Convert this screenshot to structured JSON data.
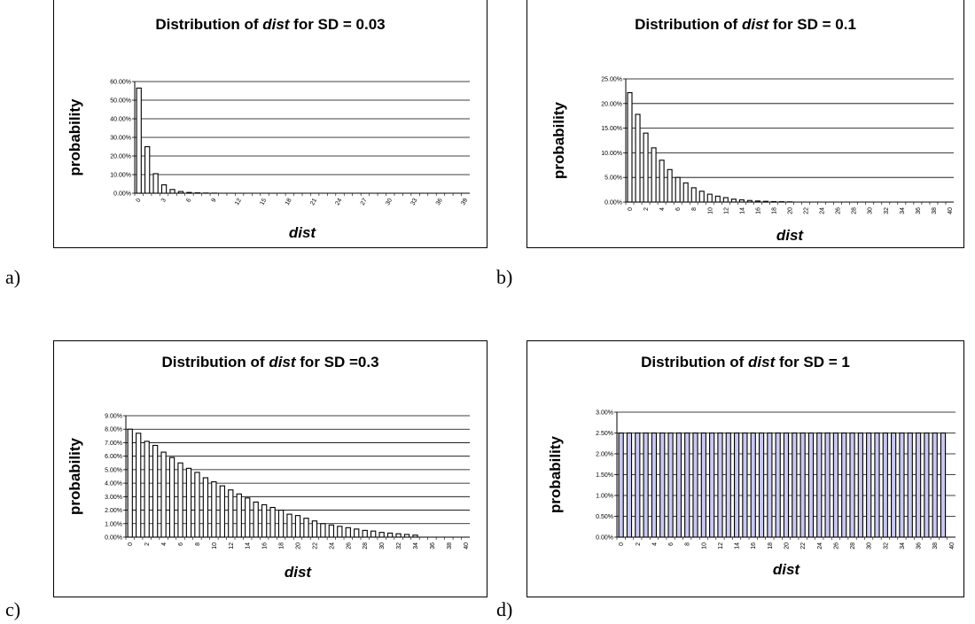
{
  "chart_data": [
    {
      "panel_label": "a)",
      "type": "bar",
      "title_prefix": "Distribution of ",
      "title_italic": "dist",
      "title_suffix": " for SD = 0.03",
      "xlabel": "dist",
      "ylabel": "probability",
      "ylim": [
        0,
        0.6
      ],
      "yticks": [
        "0.00%",
        "10.00%",
        "20.00%",
        "30.00%",
        "40.00%",
        "50.00%",
        "60.00%"
      ],
      "categories": [
        0,
        1,
        2,
        3,
        4,
        5,
        6,
        7,
        8,
        9,
        10,
        11,
        12,
        13,
        14,
        15,
        16,
        17,
        18,
        19,
        20,
        21,
        22,
        23,
        24,
        25,
        26,
        27,
        28,
        29,
        30,
        31,
        32,
        33,
        34,
        35,
        36,
        37,
        38,
        39
      ],
      "x_tick_labels": [
        "0",
        "3",
        "6",
        "9",
        "12",
        "15",
        "18",
        "21",
        "24",
        "27",
        "30",
        "33",
        "36",
        "39"
      ],
      "x_tick_step": 3,
      "bar_color": "#ffffff",
      "values": [
        0.565,
        0.25,
        0.105,
        0.045,
        0.02,
        0.009,
        0.004,
        0.002,
        0.001,
        0.0005,
        0,
        0,
        0,
        0,
        0,
        0,
        0,
        0,
        0,
        0,
        0,
        0,
        0,
        0,
        0,
        0,
        0,
        0,
        0,
        0,
        0,
        0,
        0,
        0,
        0,
        0,
        0,
        0,
        0,
        0
      ]
    },
    {
      "panel_label": "b)",
      "type": "bar",
      "title_prefix": "Distribution of ",
      "title_italic": "dist",
      "title_suffix": " for SD = 0.1",
      "xlabel": "dist",
      "ylabel": "probability",
      "ylim": [
        0,
        0.25
      ],
      "yticks": [
        "0.00%",
        "5.00%",
        "10.00%",
        "15.00%",
        "20.00%",
        "25.00%"
      ],
      "categories": [
        0,
        1,
        2,
        3,
        4,
        5,
        6,
        7,
        8,
        9,
        10,
        11,
        12,
        13,
        14,
        15,
        16,
        17,
        18,
        19,
        20,
        21,
        22,
        23,
        24,
        25,
        26,
        27,
        28,
        29,
        30,
        31,
        32,
        33,
        34,
        35,
        36,
        37,
        38,
        39,
        40
      ],
      "x_tick_labels": [
        "0",
        "2",
        "4",
        "6",
        "8",
        "10",
        "12",
        "14",
        "16",
        "18",
        "20",
        "22",
        "24",
        "26",
        "28",
        "30",
        "32",
        "34",
        "36",
        "38",
        "40"
      ],
      "x_tick_step": 2,
      "bar_color": "#ffffff",
      "values": [
        0.222,
        0.178,
        0.14,
        0.11,
        0.085,
        0.066,
        0.05,
        0.039,
        0.029,
        0.022,
        0.016,
        0.012,
        0.009,
        0.006,
        0.0045,
        0.0032,
        0.0022,
        0.0015,
        0.001,
        0.0007,
        0.0004,
        0,
        0,
        0,
        0,
        0,
        0,
        0,
        0,
        0,
        0,
        0,
        0,
        0,
        0,
        0,
        0,
        0,
        0,
        0,
        0
      ]
    },
    {
      "panel_label": "c)",
      "type": "bar",
      "title_prefix": "Distribution of ",
      "title_italic": "dist",
      "title_suffix": " for SD =0.3",
      "xlabel": "dist",
      "ylabel": "probability",
      "ylim": [
        0,
        0.09
      ],
      "yticks": [
        "0.00%",
        "1.00%",
        "2.00%",
        "3.00%",
        "4.00%",
        "5.00%",
        "6.00%",
        "7.00%",
        "8.00%",
        "9.00%"
      ],
      "categories": [
        0,
        1,
        2,
        3,
        4,
        5,
        6,
        7,
        8,
        9,
        10,
        11,
        12,
        13,
        14,
        15,
        16,
        17,
        18,
        19,
        20,
        21,
        22,
        23,
        24,
        25,
        26,
        27,
        28,
        29,
        30,
        31,
        32,
        33,
        34,
        35,
        36,
        37,
        38,
        39,
        40
      ],
      "x_tick_labels": [
        "0",
        "2",
        "4",
        "6",
        "8",
        "10",
        "12",
        "14",
        "16",
        "18",
        "20",
        "22",
        "24",
        "26",
        "28",
        "30",
        "32",
        "34",
        "36",
        "38",
        "40"
      ],
      "x_tick_step": 2,
      "bar_color": "#ffffff",
      "values": [
        0.08,
        0.077,
        0.071,
        0.068,
        0.063,
        0.059,
        0.055,
        0.051,
        0.048,
        0.044,
        0.041,
        0.038,
        0.035,
        0.032,
        0.029,
        0.026,
        0.024,
        0.022,
        0.02,
        0.017,
        0.016,
        0.014,
        0.012,
        0.01,
        0.009,
        0.008,
        0.007,
        0.006,
        0.005,
        0.0045,
        0.0035,
        0.003,
        0.0025,
        0.002,
        0.0015,
        0,
        0,
        0,
        0,
        0,
        0
      ]
    },
    {
      "panel_label": "d)",
      "type": "bar",
      "title_prefix": "Distribution of ",
      "title_italic": "dist",
      "title_suffix": " for SD = 1",
      "xlabel": "dist",
      "ylabel": "probability",
      "ylim": [
        0,
        0.03
      ],
      "yticks": [
        "0.00%",
        "0.50%",
        "1.00%",
        "1.50%",
        "2.00%",
        "2.50%",
        "3.00%"
      ],
      "categories": [
        0,
        1,
        2,
        3,
        4,
        5,
        6,
        7,
        8,
        9,
        10,
        11,
        12,
        13,
        14,
        15,
        16,
        17,
        18,
        19,
        20,
        21,
        22,
        23,
        24,
        25,
        26,
        27,
        28,
        29,
        30,
        31,
        32,
        33,
        34,
        35,
        36,
        37,
        38,
        39,
        40
      ],
      "x_tick_labels": [
        "0",
        "2",
        "4",
        "6",
        "8",
        "10",
        "12",
        "14",
        "16",
        "18",
        "20",
        "22",
        "24",
        "26",
        "28",
        "30",
        "32",
        "34",
        "36",
        "38",
        "40"
      ],
      "x_tick_step": 2,
      "bar_color": "#c8c8f0",
      "values": [
        0.025,
        0.025,
        0.025,
        0.025,
        0.025,
        0.025,
        0.025,
        0.025,
        0.025,
        0.025,
        0.025,
        0.025,
        0.025,
        0.025,
        0.025,
        0.025,
        0.025,
        0.025,
        0.025,
        0.025,
        0.025,
        0.025,
        0.025,
        0.025,
        0.025,
        0.025,
        0.025,
        0.025,
        0.025,
        0.025,
        0.025,
        0.025,
        0.025,
        0.025,
        0.025,
        0.025,
        0.025,
        0.025,
        0.025,
        0.025,
        0
      ]
    }
  ]
}
